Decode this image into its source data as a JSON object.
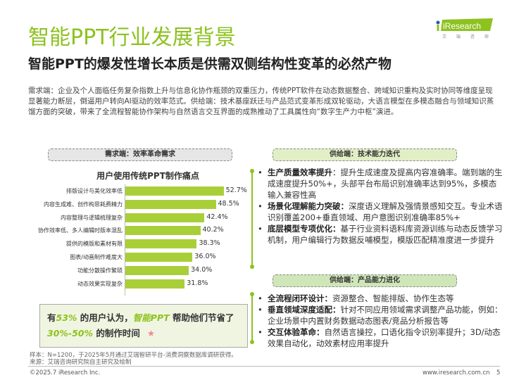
{
  "header": {
    "title": "智能PPT行业发展背景",
    "subtitle": "智能PPT的爆发性增长本质是供需双侧结构性变革的必然产物",
    "logo_text": "iResearch",
    "logo_sub": "艾 瑞 咨 询"
  },
  "intro": "需求端：企业及个人面临任务复杂指数上升与信息化协作瓶颈的双重压力，传统PPT软件在动态数据整合、跨域知识重构及实时协同等维度呈现显著能力断层，倒逼用户转向AI驱动的效率范式。供给端：技术基座跃迁与产品范式变革形成双轮驱动，大语言模型在多模态融合与领域知识蒸馏方面的突破，带来了全流程智能协作架构与自然语言交互界面的成熟推动了工具属性向“数字生产力中枢”演进。",
  "demand": {
    "header": "需求端：效率革命需求"
  },
  "chart_data": {
    "type": "bar",
    "orientation": "horizontal",
    "title": "用户使用传统PPT制作痛点",
    "categories": [
      "排版设计与美化效率低",
      "内容生成难、创作构思耗费精力",
      "内容整理与逻辑梳理复杂",
      "协作效率低、多人编辑时版本混乱",
      "提供的模版和素材有限",
      "图表/动画制作难度大",
      "功能分散操作繁琐",
      "动态效果实现复杂"
    ],
    "values": [
      52.7,
      48.5,
      42.4,
      40.2,
      38.3,
      36.0,
      34.0,
      31.8
    ],
    "labels": [
      "52.7%",
      "48.5%",
      "42.4%",
      "40.2%",
      "38.3%",
      "36.0%",
      "34.0%",
      "31.8%"
    ],
    "unit": "%",
    "bar_color": "#a9cf38"
  },
  "callout": {
    "p1": "有",
    "h1": "53%",
    "p2": " 的用户认为，",
    "h2": "智能PPT",
    "p3": " 帮助他们节省了",
    "h3": "30%-50%",
    "p4": " 的制作时间",
    "star": "★"
  },
  "supply_tech": {
    "header": "供给端：技术能力迭代",
    "items": [
      {
        "title": "生产质量效率提升",
        "text": "：提升生成速度及提高内容准确率。端到端的生成速度提升50%+，头部平台布局识别准确率达到95%，多模态输入兼容性高"
      },
      {
        "title": "场景化理解能力突破：",
        "text": "深度语义理解及强情景感知交互。专业术语识别覆盖200+垂直领域、用户意图识别准确率85%+"
      },
      {
        "title": "底层模型专项优化：",
        "text": "基于行业资料语料库资源训练与动态反馈学习机制，用户编辑行为数据反哺模型，模版匹配精准度进一步提升"
      }
    ]
  },
  "supply_product": {
    "header": "供给端：产品能力进化",
    "items": [
      {
        "title": "全流程闭环设计：",
        "text": "资源整合、智能排版、协作生态等"
      },
      {
        "title": "垂直领域深度适配：",
        "text": "针对不同应用领域需求调整产品功能，例如：企业场景中内置财务数据动态图表/竞品分析报告等"
      },
      {
        "title": "交互体验革命：",
        "text": "自然语言操控，口语化指令识别率提升；3D/动态效果自动化，动效素材应用率提升"
      }
    ]
  },
  "footer": {
    "sample": "样本：N=1200，于2025年5月通过艾瑞智研平台-消费洞察数据库调研获得。",
    "source": "来源：艾瑞咨询研究院自主研究及绘制",
    "copyright": "©2025.7 iResearch Inc.",
    "website": "www.iresearch.com.cn",
    "page": "5"
  },
  "colors": {
    "accent": "#8dc21f",
    "bar": "#a9cf38"
  }
}
